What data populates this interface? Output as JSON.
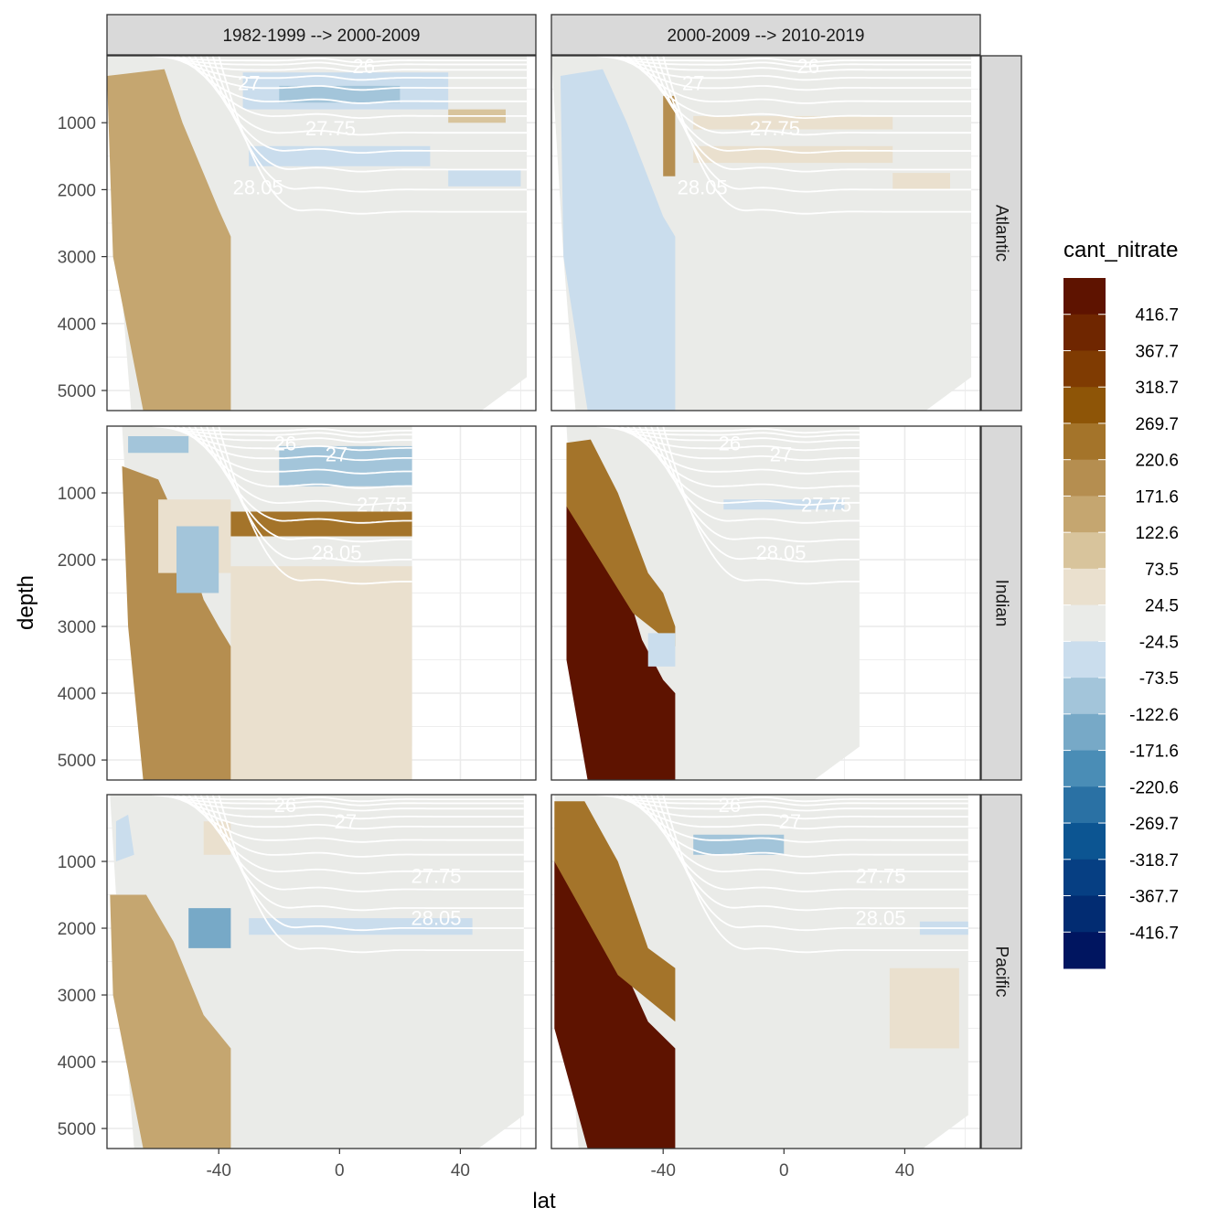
{
  "chart_data": {
    "type": "heatmap",
    "facet_columns": [
      "1982-1999 --> 2000-2009",
      "2000-2009 --> 2010-2019"
    ],
    "facet_rows": [
      "Atlantic",
      "Indian",
      "Pacific"
    ],
    "xlabel": "lat",
    "ylabel": "depth",
    "x_ticks": [
      -40,
      0,
      40
    ],
    "y_ticks": [
      1000,
      2000,
      3000,
      4000,
      5000
    ],
    "xlim": [
      -77,
      65
    ],
    "ylim": [
      5300,
      0
    ],
    "y_reversed": true,
    "grid": true,
    "legend": {
      "title": "cant_nitrate",
      "position": "right",
      "labels": [
        "416.7",
        "367.7",
        "318.7",
        "269.7",
        "220.6",
        "171.6",
        "122.6",
        "73.5",
        "24.5",
        "-24.5",
        "-73.5",
        "-122.6",
        "-171.6",
        "-220.6",
        "-269.7",
        "-318.7",
        "-367.7",
        "-416.7"
      ],
      "colors": [
        "#5e1300",
        "#6f2600",
        "#7f3b02",
        "#8e5507",
        "#a4742a",
        "#b58e50",
        "#c5a670",
        "#d8c49c",
        "#eae0ce",
        "#eaebe8",
        "#cadded",
        "#a3c5da",
        "#77a9c7",
        "#4a8db6",
        "#2a71a4",
        "#0c5592",
        "#063f83",
        "#022c72",
        "#001560"
      ]
    },
    "isopycnal_labels": [
      "26",
      "27",
      "27.75",
      "28.05"
    ],
    "panels": [
      {
        "row": "Atlantic",
        "col": "1982-1999 --> 2000-2009",
        "labels": [
          {
            "t": "26",
            "x": 8,
            "y": 150
          },
          {
            "t": "27",
            "x": -30,
            "y": 400
          },
          {
            "t": "27.75",
            "x": -3,
            "y": 1080
          },
          {
            "t": "28.05",
            "x": -27,
            "y": 1960
          }
        ]
      },
      {
        "row": "Atlantic",
        "col": "2000-2009 --> 2010-2019",
        "labels": [
          {
            "t": "26",
            "x": 8,
            "y": 150
          },
          {
            "t": "27",
            "x": -30,
            "y": 400
          },
          {
            "t": "27.75",
            "x": -3,
            "y": 1080
          },
          {
            "t": "28.05",
            "x": -27,
            "y": 1960
          }
        ]
      },
      {
        "row": "Indian",
        "col": "1982-1999 --> 2000-2009",
        "labels": [
          {
            "t": "26",
            "x": -18,
            "y": 250
          },
          {
            "t": "27",
            "x": -1,
            "y": 420
          },
          {
            "t": "27.75",
            "x": 14,
            "y": 1170
          },
          {
            "t": "28.05",
            "x": -1,
            "y": 1890
          }
        ]
      },
      {
        "row": "Indian",
        "col": "2000-2009 --> 2010-2019",
        "labels": [
          {
            "t": "26",
            "x": -18,
            "y": 250
          },
          {
            "t": "27",
            "x": -1,
            "y": 420
          },
          {
            "t": "27.75",
            "x": 14,
            "y": 1170
          },
          {
            "t": "28.05",
            "x": -1,
            "y": 1890
          }
        ]
      },
      {
        "row": "Pacific",
        "col": "1982-1999 --> 2000-2009",
        "labels": [
          {
            "t": "26",
            "x": -18,
            "y": 150
          },
          {
            "t": "27",
            "x": 2,
            "y": 400
          },
          {
            "t": "27.75",
            "x": 32,
            "y": 1210
          },
          {
            "t": "28.05",
            "x": 32,
            "y": 1840
          }
        ]
      },
      {
        "row": "Pacific",
        "col": "2000-2009 --> 2010-2019",
        "labels": [
          {
            "t": "26",
            "x": -18,
            "y": 150
          },
          {
            "t": "27",
            "x": 2,
            "y": 400
          },
          {
            "t": "27.75",
            "x": 32,
            "y": 1210
          },
          {
            "t": "28.05",
            "x": 32,
            "y": 1840
          }
        ]
      }
    ]
  }
}
